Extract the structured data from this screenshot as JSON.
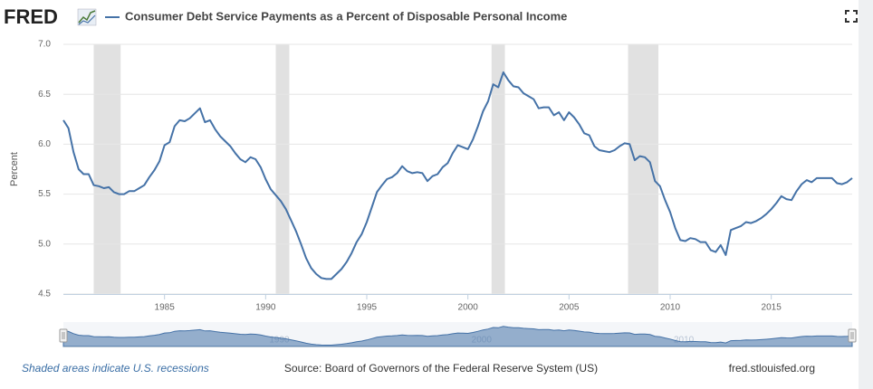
{
  "logo": "FRED",
  "chart_data": {
    "type": "line",
    "y_label": "Percent",
    "x": [
      1980,
      1980.25,
      1980.5,
      1980.75,
      1981,
      1981.25,
      1981.5,
      1981.75,
      1982,
      1982.25,
      1982.5,
      1982.75,
      1983,
      1983.25,
      1983.5,
      1983.75,
      1984,
      1984.25,
      1984.5,
      1984.75,
      1985,
      1985.25,
      1985.5,
      1985.75,
      1986,
      1986.25,
      1986.5,
      1986.75,
      1987,
      1987.25,
      1987.5,
      1987.75,
      1988,
      1988.25,
      1988.5,
      1988.75,
      1989,
      1989.25,
      1989.5,
      1989.75,
      1990,
      1990.25,
      1990.5,
      1990.75,
      1991,
      1991.25,
      1991.5,
      1991.75,
      1992,
      1992.25,
      1992.5,
      1992.75,
      1993,
      1993.25,
      1993.5,
      1993.75,
      1994,
      1994.25,
      1994.5,
      1994.75,
      1995,
      1995.25,
      1995.5,
      1995.75,
      1996,
      1996.25,
      1996.5,
      1996.75,
      1997,
      1997.25,
      1997.5,
      1997.75,
      1998,
      1998.25,
      1998.5,
      1998.75,
      1999,
      1999.25,
      1999.5,
      1999.75,
      2000,
      2000.25,
      2000.5,
      2000.75,
      2001,
      2001.25,
      2001.5,
      2001.75,
      2002,
      2002.25,
      2002.5,
      2002.75,
      2003,
      2003.25,
      2003.5,
      2003.75,
      2004,
      2004.25,
      2004.5,
      2004.75,
      2005,
      2005.25,
      2005.5,
      2005.75,
      2006,
      2006.25,
      2006.5,
      2006.75,
      2007,
      2007.25,
      2007.5,
      2007.75,
      2008,
      2008.25,
      2008.5,
      2008.75,
      2009,
      2009.25,
      2009.5,
      2009.75,
      2010,
      2010.25,
      2010.5,
      2010.75,
      2011,
      2011.25,
      2011.5,
      2011.75,
      2012,
      2012.25,
      2012.5,
      2012.75,
      2013,
      2013.25,
      2013.5,
      2013.75,
      2014,
      2014.25,
      2014.5,
      2014.75,
      2015,
      2015.25,
      2015.5,
      2015.75,
      2016,
      2016.25,
      2016.5,
      2016.75,
      2017,
      2017.25,
      2017.5,
      2017.75,
      2018,
      2018.25,
      2018.5,
      2018.75,
      2019
    ],
    "series": [
      {
        "name": "Consumer Debt Service Payments as a Percent of Disposable Personal Income",
        "color": "#4572a7",
        "values": [
          6.24,
          6.16,
          5.92,
          5.75,
          5.7,
          5.7,
          5.59,
          5.58,
          5.56,
          5.57,
          5.52,
          5.5,
          5.5,
          5.53,
          5.53,
          5.56,
          5.59,
          5.67,
          5.74,
          5.83,
          5.99,
          6.02,
          6.18,
          6.24,
          6.23,
          6.26,
          6.31,
          6.36,
          6.22,
          6.24,
          6.15,
          6.08,
          6.03,
          5.98,
          5.91,
          5.85,
          5.82,
          5.87,
          5.85,
          5.77,
          5.65,
          5.55,
          5.49,
          5.43,
          5.35,
          5.24,
          5.13,
          5.0,
          4.86,
          4.76,
          4.7,
          4.66,
          4.65,
          4.65,
          4.7,
          4.75,
          4.82,
          4.91,
          5.02,
          5.1,
          5.22,
          5.37,
          5.52,
          5.59,
          5.65,
          5.67,
          5.71,
          5.78,
          5.73,
          5.71,
          5.72,
          5.71,
          5.63,
          5.68,
          5.7,
          5.77,
          5.81,
          5.91,
          5.99,
          5.97,
          5.95,
          6.05,
          6.18,
          6.33,
          6.43,
          6.6,
          6.57,
          6.72,
          6.64,
          6.58,
          6.57,
          6.51,
          6.48,
          6.45,
          6.36,
          6.37,
          6.37,
          6.29,
          6.32,
          6.24,
          6.32,
          6.27,
          6.2,
          6.11,
          6.09,
          5.98,
          5.94,
          5.93,
          5.92,
          5.94,
          5.98,
          6.01,
          6.0,
          5.84,
          5.88,
          5.87,
          5.82,
          5.63,
          5.58,
          5.44,
          5.32,
          5.16,
          5.04,
          5.03,
          5.06,
          5.05,
          5.02,
          5.02,
          4.94,
          4.92,
          4.99,
          4.89,
          5.14,
          5.16,
          5.18,
          5.22,
          5.21,
          5.23,
          5.26,
          5.3,
          5.35,
          5.41,
          5.48,
          5.45,
          5.44,
          5.53,
          5.6,
          5.64,
          5.62,
          5.66,
          5.66,
          5.66,
          5.66,
          5.61,
          5.6,
          5.62,
          5.66
        ]
      }
    ],
    "recessions": [
      [
        1981.5,
        1982.83
      ],
      [
        1990.5,
        1991.17
      ],
      [
        2001.17,
        2001.83
      ],
      [
        2007.92,
        2009.42
      ]
    ],
    "recession_color": "#e1e1e1",
    "xlim": [
      1980,
      2019
    ],
    "xticks": [
      1985,
      1990,
      1995,
      2000,
      2005,
      2010,
      2015
    ],
    "ylim": [
      4.5,
      7.0
    ],
    "yticks": [
      {
        "value": 4.5,
        "label": "4.5"
      },
      {
        "value": 5.0,
        "label": "5.0"
      },
      {
        "value": 5.5,
        "label": "5.5"
      },
      {
        "value": 6.0,
        "label": "6.0"
      },
      {
        "value": 6.5,
        "label": "6.5"
      },
      {
        "value": 7.0,
        "label": "7.0"
      }
    ],
    "grid": true,
    "navigator_xticks": [
      1990,
      2000,
      2010
    ]
  },
  "footer": {
    "note": "Shaded areas indicate U.S. recessions",
    "source": "Source: Board of Governors of the Federal Reserve System (US)",
    "site": "fred.stlouisfed.org"
  }
}
